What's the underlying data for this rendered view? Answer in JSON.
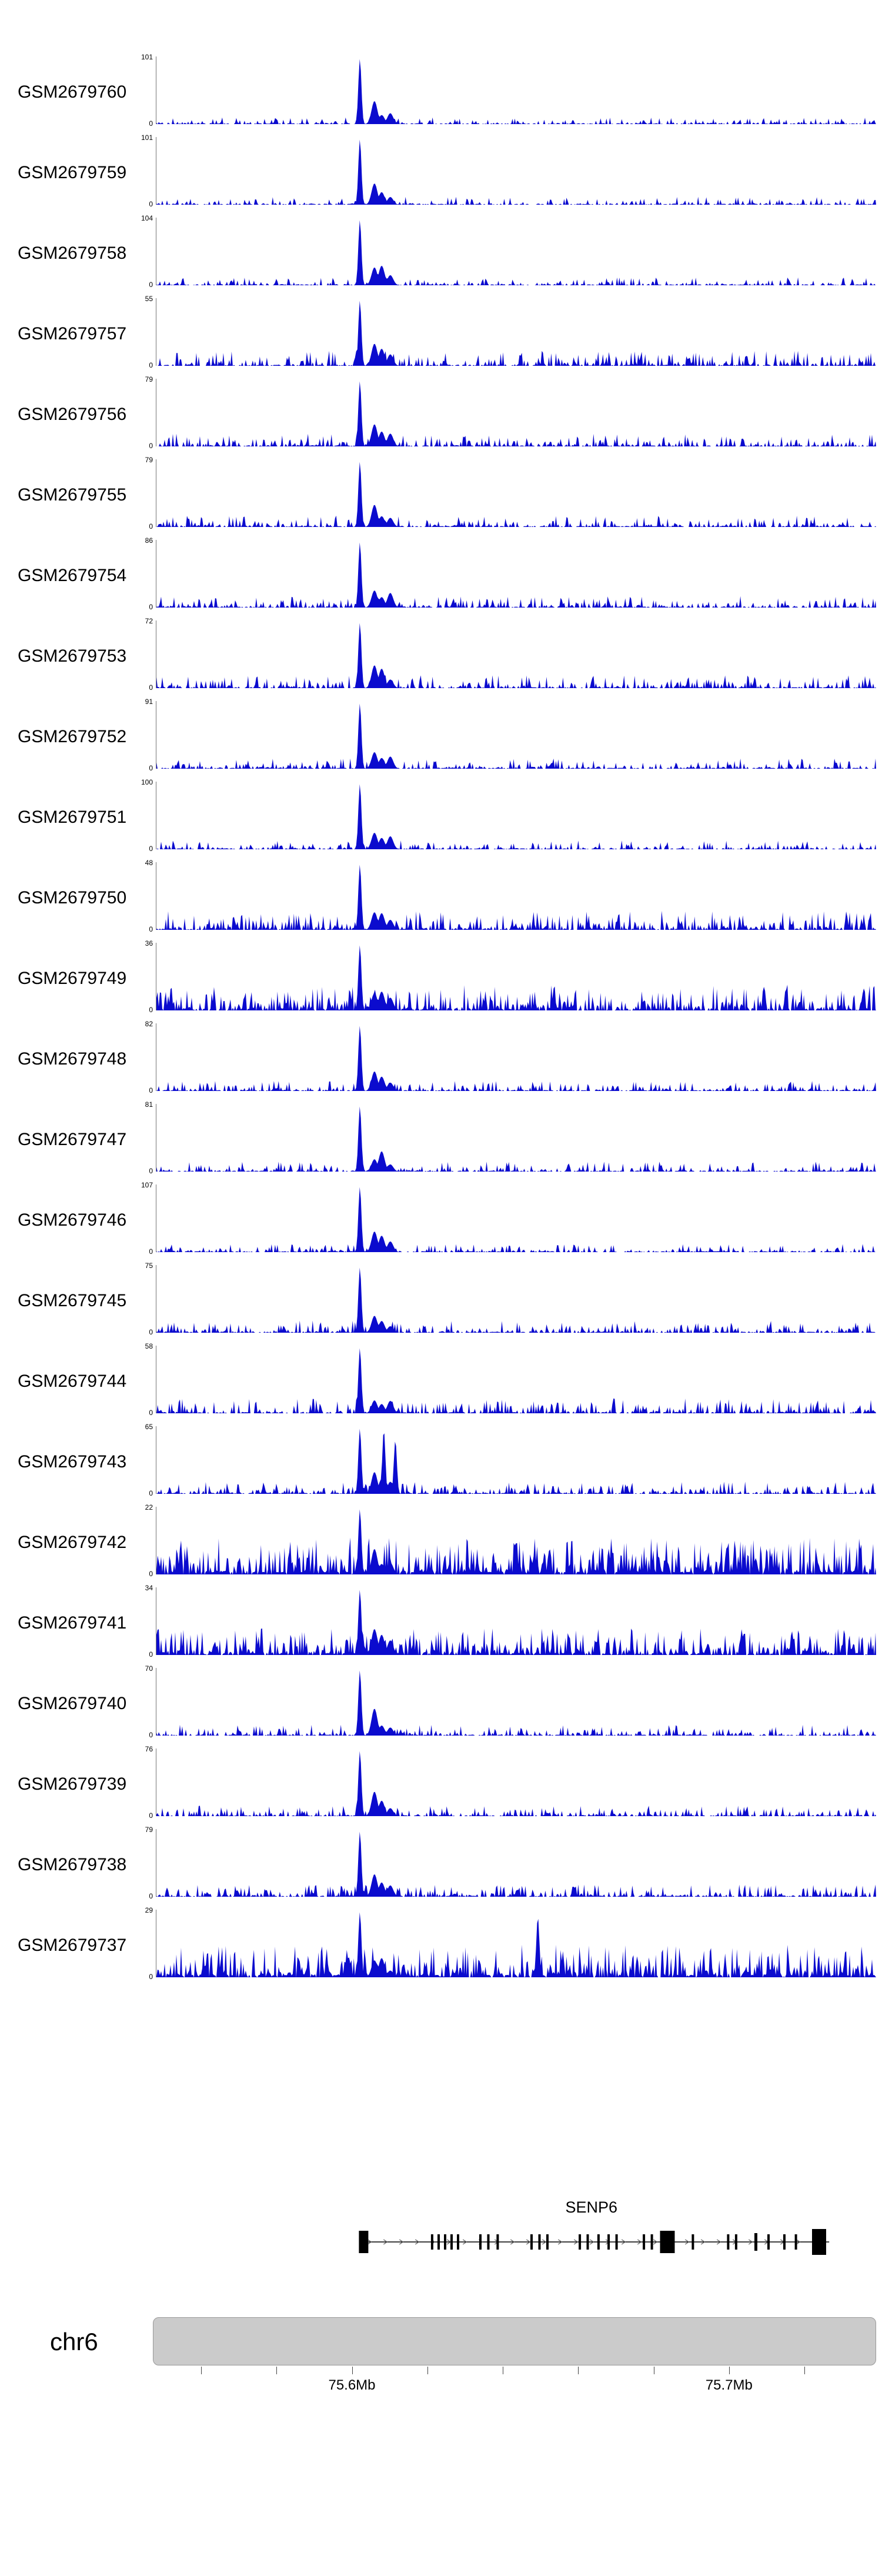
{
  "page": {
    "background": "#ffffff"
  },
  "labels": {
    "zero": "0"
  },
  "chart_data": {
    "type": "area",
    "kind": "genome-browser-coverage-tracks",
    "title": "",
    "chromosome": "chr6",
    "x_range_mb": [
      75.548,
      75.739
    ],
    "x_ticks": [
      {
        "mb": 75.6,
        "label": "75.6Mb"
      },
      {
        "mb": 75.7,
        "label": "75.7Mb"
      }
    ],
    "minor_tick_start_mb": 75.56,
    "minor_tick_step_mb": 0.02,
    "minor_tick_count": 9,
    "signal_color": "#0b0bce",
    "ideogram_color": "#cbcbcb",
    "main_peak_mb": 75.602,
    "post_peak_bumps": [
      {
        "f": 0.303,
        "h": 0.3
      },
      {
        "f": 0.313,
        "h": 0.22
      },
      {
        "f": 0.325,
        "h": 0.16
      }
    ],
    "tracks": [
      {
        "label": "GSM2679760",
        "ymax": 101,
        "peak": 0.97,
        "density": 0.38,
        "amp": 0.1
      },
      {
        "label": "GSM2679759",
        "ymax": 101,
        "peak": 0.97,
        "density": 0.42,
        "amp": 0.12
      },
      {
        "label": "GSM2679758",
        "ymax": 104,
        "peak": 0.97,
        "density": 0.42,
        "amp": 0.12
      },
      {
        "label": "GSM2679757",
        "ymax": 55,
        "peak": 0.97,
        "density": 0.58,
        "amp": 0.22
      },
      {
        "label": "GSM2679756",
        "ymax": 79,
        "peak": 0.97,
        "density": 0.55,
        "amp": 0.19
      },
      {
        "label": "GSM2679755",
        "ymax": 79,
        "peak": 0.97,
        "density": 0.52,
        "amp": 0.17
      },
      {
        "label": "GSM2679754",
        "ymax": 86,
        "peak": 0.97,
        "density": 0.52,
        "amp": 0.17
      },
      {
        "label": "GSM2679753",
        "ymax": 72,
        "peak": 0.97,
        "density": 0.55,
        "amp": 0.19
      },
      {
        "label": "GSM2679752",
        "ymax": 91,
        "peak": 0.97,
        "density": 0.5,
        "amp": 0.15
      },
      {
        "label": "GSM2679751",
        "ymax": 100,
        "peak": 0.97,
        "density": 0.46,
        "amp": 0.13
      },
      {
        "label": "GSM2679750",
        "ymax": 48,
        "peak": 0.97,
        "density": 0.62,
        "amp": 0.28
      },
      {
        "label": "GSM2679749",
        "ymax": 36,
        "peak": 0.97,
        "density": 0.7,
        "amp": 0.38
      },
      {
        "label": "GSM2679748",
        "ymax": 82,
        "peak": 0.97,
        "density": 0.5,
        "amp": 0.15
      },
      {
        "label": "GSM2679747",
        "ymax": 81,
        "peak": 0.97,
        "density": 0.5,
        "amp": 0.15
      },
      {
        "label": "GSM2679746",
        "ymax": 107,
        "peak": 0.97,
        "density": 0.45,
        "amp": 0.12
      },
      {
        "label": "GSM2679745",
        "ymax": 75,
        "peak": 0.97,
        "density": 0.55,
        "amp": 0.18
      },
      {
        "label": "GSM2679744",
        "ymax": 58,
        "peak": 0.97,
        "density": 0.58,
        "amp": 0.22
      },
      {
        "label": "GSM2679743",
        "ymax": 65,
        "peak": 0.97,
        "density": 0.55,
        "amp": 0.18,
        "extra_peaks": [
          {
            "f": 0.316,
            "h": 0.95
          },
          {
            "f": 0.332,
            "h": 0.8
          }
        ]
      },
      {
        "label": "GSM2679742",
        "ymax": 22,
        "peak": 0.97,
        "density": 0.88,
        "amp": 0.55
      },
      {
        "label": "GSM2679741",
        "ymax": 34,
        "peak": 0.97,
        "density": 0.78,
        "amp": 0.4
      },
      {
        "label": "GSM2679740",
        "ymax": 70,
        "peak": 0.97,
        "density": 0.5,
        "amp": 0.16
      },
      {
        "label": "GSM2679739",
        "ymax": 76,
        "peak": 0.97,
        "density": 0.5,
        "amp": 0.16
      },
      {
        "label": "GSM2679738",
        "ymax": 79,
        "peak": 0.97,
        "density": 0.55,
        "amp": 0.18
      },
      {
        "label": "GSM2679737",
        "ymax": 29,
        "peak": 0.97,
        "density": 0.82,
        "amp": 0.48,
        "extra_peaks": [
          {
            "f": 0.53,
            "h": 0.9
          }
        ]
      }
    ],
    "gene": {
      "name": "SENP6",
      "start_mb": 75.602,
      "end_mb": 75.725,
      "strand": "+",
      "exons": [
        [
          0.282,
          16,
          38
        ],
        [
          0.382,
          4,
          26
        ],
        [
          0.391,
          4,
          26
        ],
        [
          0.4,
          4,
          26
        ],
        [
          0.409,
          4,
          26
        ],
        [
          0.418,
          4,
          26
        ],
        [
          0.449,
          4,
          26
        ],
        [
          0.46,
          4,
          26
        ],
        [
          0.473,
          4,
          26
        ],
        [
          0.52,
          4,
          26
        ],
        [
          0.531,
          4,
          26
        ],
        [
          0.542,
          4,
          26
        ],
        [
          0.587,
          4,
          26
        ],
        [
          0.598,
          4,
          26
        ],
        [
          0.613,
          4,
          26
        ],
        [
          0.627,
          4,
          26
        ],
        [
          0.638,
          4,
          26
        ],
        [
          0.676,
          4,
          26
        ],
        [
          0.687,
          4,
          26
        ],
        [
          0.7,
          25,
          38
        ],
        [
          0.744,
          4,
          26
        ],
        [
          0.793,
          4,
          26
        ],
        [
          0.804,
          4,
          26
        ],
        [
          0.831,
          5,
          30
        ],
        [
          0.849,
          4,
          26
        ],
        [
          0.871,
          4,
          26
        ],
        [
          0.887,
          4,
          26
        ],
        [
          0.911,
          24,
          44
        ]
      ]
    }
  }
}
